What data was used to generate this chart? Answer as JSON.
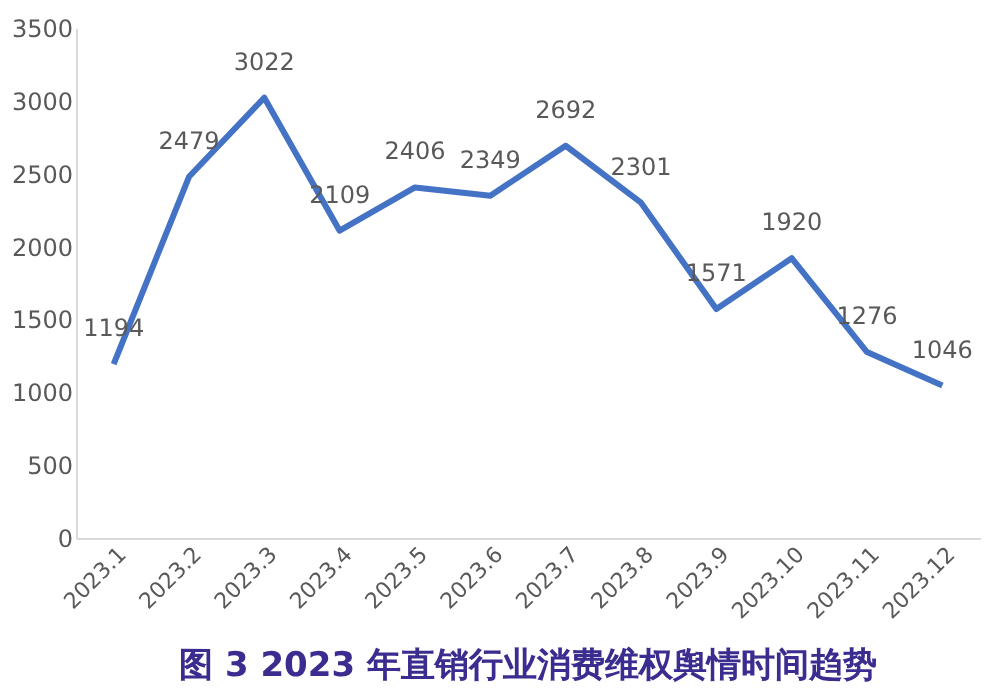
{
  "chart_data": {
    "type": "line",
    "title": "图 3 2023 年直销行业消费维权舆情时间趋势",
    "categories": [
      "2023.1",
      "2023.2",
      "2023.3",
      "2023.4",
      "2023.5",
      "2023.6",
      "2023.7",
      "2023.8",
      "2023.9",
      "2023.10",
      "2023.11",
      "2023.12"
    ],
    "series": [
      {
        "color": "#4472c4",
        "values": [
          1194,
          2479,
          3022,
          2109,
          2406,
          2349,
          2692,
          2301,
          1571,
          1920,
          1276,
          1046
        ]
      }
    ],
    "ylim": [
      0,
      3500
    ],
    "yticks": [
      0,
      500,
      1000,
      1500,
      2000,
      2500,
      3000,
      3500
    ],
    "data_labels": true,
    "grid": false,
    "legend": false,
    "marker": "none",
    "line_style": "solid"
  }
}
